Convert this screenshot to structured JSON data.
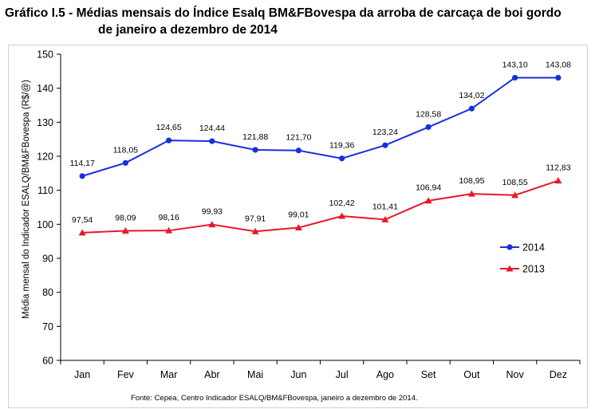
{
  "title_line1": "Gráfico I.5 - Médias mensais do Índice Esalq BM&FBovespa da arroba de carcaça de boi gordo",
  "title_line2": "de janeiro a dezembro de 2014",
  "source": "Fonte: Cepea, Centro Indicador ESALQ/BM&FBovespa, janeiro a dezembro de 2014.",
  "chart_data": {
    "type": "line",
    "title": "",
    "xlabel": "",
    "ylabel": "Média mensal do Indicador ESALQ/BM&FBovespa (R$/@)",
    "ylim": [
      60,
      150
    ],
    "yticks": [
      60,
      70,
      80,
      90,
      100,
      110,
      120,
      130,
      140,
      150
    ],
    "grid": false,
    "legend_position": "right",
    "categories": [
      "Jan",
      "Fev",
      "Mar",
      "Abr",
      "Mai",
      "Jun",
      "Jul",
      "Ago",
      "Set",
      "Out",
      "Nov",
      "Dez"
    ],
    "series": [
      {
        "name": "2014",
        "color": "#1a2ee0",
        "marker": "circle",
        "values": [
          114.17,
          118.05,
          124.65,
          124.44,
          121.88,
          121.7,
          119.36,
          123.24,
          128.58,
          134.02,
          143.1,
          143.08
        ],
        "labels": [
          "114,17",
          "118,05",
          "124,65",
          "124,44",
          "121,88",
          "121,70",
          "119,36",
          "123,24",
          "128,58",
          "134,02",
          "143,10",
          "143,08"
        ]
      },
      {
        "name": "2013",
        "color": "#e8182a",
        "marker": "triangle",
        "values": [
          97.54,
          98.09,
          98.16,
          99.93,
          97.91,
          99.01,
          102.42,
          101.41,
          106.94,
          108.95,
          108.55,
          112.83
        ],
        "labels": [
          "97,54",
          "98,09",
          "98,16",
          "99,93",
          "97,91",
          "99,01",
          "102,42",
          "101,41",
          "106,94",
          "108,95",
          "108,55",
          "112,83"
        ]
      }
    ]
  }
}
